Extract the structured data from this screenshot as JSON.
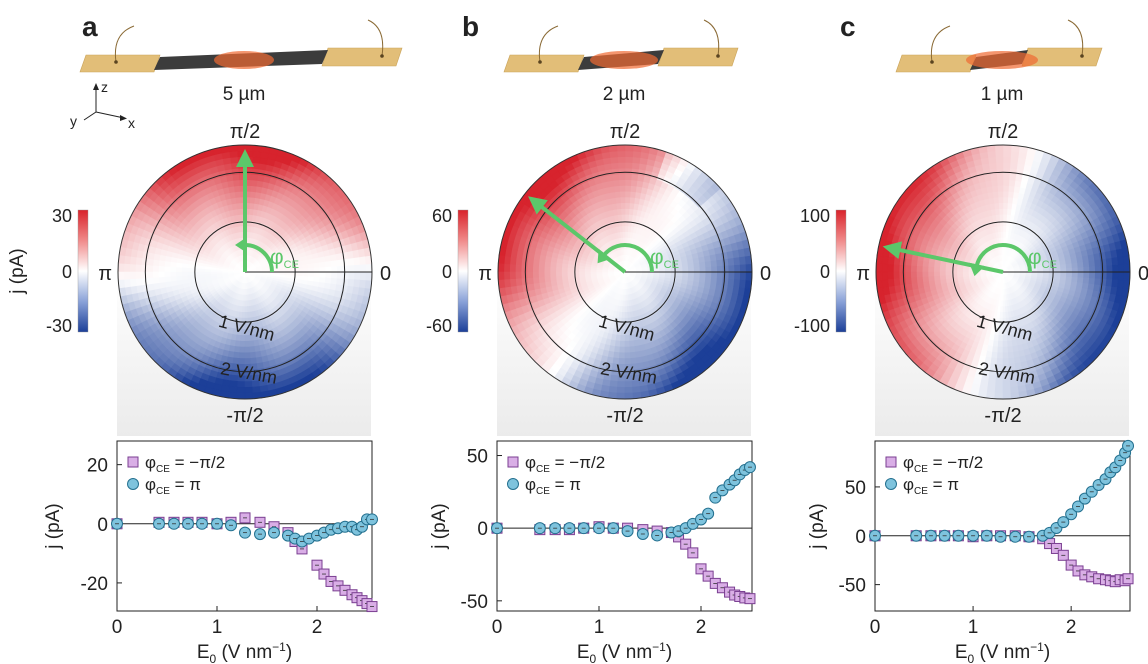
{
  "panels": [
    {
      "letter": "a",
      "device_label": "5 µm",
      "colorbar": {
        "max_label": "30",
        "mid_label": "0",
        "min_label": "-30",
        "ylabel": "j (pA)"
      },
      "polar": {
        "top": "π/2",
        "bottom": "-π/2",
        "left": "π",
        "right": "0",
        "ring1": "1 V/nm",
        "ring2": "2 V/nm",
        "phi_label": "φ",
        "phi_sub": "CE",
        "arrow_angle_deg": 90,
        "pattern": "vertical"
      },
      "axes_labels": {
        "x_axis": "xyz-axes"
      }
    },
    {
      "letter": "b",
      "device_label": "2 µm",
      "colorbar": {
        "max_label": "60",
        "mid_label": "0",
        "min_label": "-60",
        "ylabel": ""
      },
      "polar": {
        "top": "π/2",
        "bottom": "-π/2",
        "left": "π",
        "right": "0",
        "ring1": "1 V/nm",
        "ring2": "2 V/nm",
        "phi_label": "φ",
        "phi_sub": "CE",
        "arrow_angle_deg": 142,
        "pattern": "diagonal"
      },
      "axes_labels": {
        "x_axis": ""
      }
    },
    {
      "letter": "c",
      "device_label": "1 µm",
      "colorbar": {
        "max_label": "100",
        "mid_label": "0",
        "min_label": "-100",
        "ylabel": ""
      },
      "polar": {
        "top": "π/2",
        "bottom": "-π/2",
        "left": "π",
        "right": "0",
        "ring1": "1 V/nm",
        "ring2": "2 V/nm",
        "phi_label": "φ",
        "phi_sub": "CE",
        "arrow_angle_deg": 168,
        "pattern": "horizontal"
      },
      "axes_labels": {
        "x_axis": ""
      }
    }
  ],
  "axis_labels_3d": {
    "z": "z",
    "y": "y",
    "x": "x"
  },
  "colors": {
    "series1_fill": "#d9aee6",
    "series1_edge": "#7a3f91",
    "series2_fill": "#7ec3dd",
    "series2_edge": "#24708f",
    "arrow": "#5cc76a",
    "gold": "#e2be78",
    "laser": "#f06a32"
  },
  "chart_data": [
    {
      "type": "scatter",
      "xlabel_main": "E",
      "xlabel_sub": "0",
      "xlabel_unit": " (V nm",
      "xlabel_exp": "−1",
      "xlabel_close": ")",
      "ylabel": "j (pA)",
      "xlim": [
        0,
        2.55
      ],
      "ylim": [
        -29.5,
        28
      ],
      "xticks": [
        0,
        1,
        2
      ],
      "yticks": [
        20,
        0,
        -20
      ],
      "legend_placement": "top-left",
      "series": [
        {
          "name": "φCE = −π/2",
          "legend_main": "φ",
          "legend_sub": "CE",
          "legend_rest": " = −π/2",
          "marker": "square",
          "x": [
            0.0,
            0.42,
            0.57,
            0.71,
            0.85,
            1.0,
            1.14,
            1.28,
            1.43,
            1.57,
            1.71,
            1.78,
            1.85,
            2.0,
            2.07,
            2.14,
            2.21,
            2.28,
            2.35,
            2.4,
            2.45,
            2.5,
            2.55
          ],
          "y": [
            0.0,
            0.5,
            0.5,
            0.5,
            0.5,
            0.0,
            0.5,
            2.0,
            0.5,
            -1.0,
            -3.0,
            -6.0,
            -8.5,
            -14.0,
            -17.0,
            -19.5,
            -21.0,
            -22.5,
            -24.0,
            -25.0,
            -26.0,
            -27.0,
            -28.0
          ]
        },
        {
          "name": "φCE = π",
          "legend_main": "φ",
          "legend_sub": "CE",
          "legend_rest": " = π",
          "marker": "circle",
          "x": [
            0.0,
            0.42,
            0.57,
            0.71,
            0.85,
            1.0,
            1.14,
            1.28,
            1.43,
            1.57,
            1.71,
            1.78,
            1.85,
            1.92,
            2.0,
            2.07,
            2.14,
            2.21,
            2.28,
            2.35,
            2.4,
            2.45,
            2.5,
            2.55
          ],
          "y": [
            0.0,
            0.0,
            0.0,
            0.0,
            0.0,
            0.0,
            -0.5,
            -3.0,
            -3.5,
            -3.0,
            -4.0,
            -5.0,
            -6.0,
            -5.0,
            -4.0,
            -3.0,
            -2.0,
            -1.5,
            -1.0,
            -1.0,
            -2.0,
            -1.0,
            1.5,
            1.5
          ]
        }
      ]
    },
    {
      "type": "scatter",
      "xlabel_main": "E",
      "xlabel_sub": "0",
      "xlabel_unit": " (V nm",
      "xlabel_exp": "−1",
      "xlabel_close": ")",
      "ylabel": "j (pA)",
      "xlim": [
        0,
        2.5
      ],
      "ylim": [
        -57,
        60
      ],
      "xticks": [
        0,
        1,
        2
      ],
      "yticks": [
        50,
        0,
        -50
      ],
      "legend_placement": "top-left",
      "series": [
        {
          "name": "φCE = −π/2",
          "legend_main": "φ",
          "legend_sub": "CE",
          "legend_rest": " = −π/2",
          "marker": "square",
          "x": [
            0.0,
            0.42,
            0.57,
            0.71,
            0.85,
            1.0,
            1.14,
            1.28,
            1.43,
            1.57,
            1.71,
            1.78,
            1.85,
            1.92,
            2.0,
            2.07,
            2.14,
            2.21,
            2.28,
            2.33,
            2.38,
            2.43,
            2.48
          ],
          "y": [
            0.0,
            -1.0,
            -1.0,
            -1.0,
            0.0,
            1.0,
            0.0,
            0.0,
            -1.0,
            -2.0,
            -3.0,
            -6.0,
            -11.0,
            -17.0,
            -28.0,
            -33.0,
            -38.0,
            -41.0,
            -44.0,
            -46.0,
            -47.0,
            -48.0,
            -48.5
          ]
        },
        {
          "name": "φCE = π",
          "legend_main": "φ",
          "legend_sub": "CE",
          "legend_rest": " = π",
          "marker": "circle",
          "x": [
            0.0,
            0.42,
            0.57,
            0.71,
            0.85,
            1.0,
            1.14,
            1.28,
            1.43,
            1.57,
            1.71,
            1.78,
            1.85,
            1.92,
            2.0,
            2.07,
            2.14,
            2.21,
            2.28,
            2.33,
            2.38,
            2.43,
            2.48
          ],
          "y": [
            0.0,
            0.0,
            0.0,
            0.0,
            0.0,
            0.0,
            0.0,
            -2.0,
            -4.0,
            -5.0,
            -3.0,
            -2.0,
            0.0,
            3.0,
            6.0,
            10.0,
            21.0,
            26.0,
            30.0,
            33.0,
            37.0,
            40.0,
            42.0
          ]
        }
      ]
    },
    {
      "type": "scatter",
      "xlabel_main": "E",
      "xlabel_sub": "0",
      "xlabel_unit": " (V nm",
      "xlabel_exp": "−1",
      "xlabel_close": ")",
      "ylabel": "j (pA)",
      "xlim": [
        0,
        2.6
      ],
      "ylim": [
        -77,
        97
      ],
      "xticks": [
        0,
        1,
        2
      ],
      "yticks": [
        50,
        0,
        -50
      ],
      "legend_placement": "top-left",
      "series": [
        {
          "name": "φCE = −π/2",
          "legend_main": "φ",
          "legend_sub": "CE",
          "legend_rest": " = −π/2",
          "marker": "square",
          "x": [
            0.0,
            0.42,
            0.57,
            0.71,
            0.85,
            1.0,
            1.14,
            1.28,
            1.43,
            1.57,
            1.71,
            1.78,
            1.85,
            1.92,
            2.0,
            2.07,
            2.14,
            2.21,
            2.28,
            2.35,
            2.4,
            2.45,
            2.5,
            2.55,
            2.58
          ],
          "y": [
            0.0,
            0.0,
            0.0,
            0.0,
            0.0,
            -1.0,
            0.0,
            0.0,
            0.0,
            -1.0,
            -3.0,
            -8.0,
            -13.0,
            -20.0,
            -30.0,
            -36.0,
            -40.0,
            -42.0,
            -44.0,
            -45.0,
            -46.0,
            -47.0,
            -45.0,
            -46.0,
            -44.0
          ]
        },
        {
          "name": "φCE = π",
          "legend_main": "φ",
          "legend_sub": "CE",
          "legend_rest": " = π",
          "marker": "circle",
          "x": [
            0.0,
            0.42,
            0.57,
            0.71,
            0.85,
            1.0,
            1.14,
            1.28,
            1.43,
            1.57,
            1.71,
            1.78,
            1.85,
            1.92,
            2.0,
            2.07,
            2.14,
            2.21,
            2.28,
            2.35,
            2.4,
            2.45,
            2.5,
            2.55,
            2.58
          ],
          "y": [
            0.0,
            0.0,
            0.0,
            0.0,
            0.0,
            0.0,
            0.0,
            -1.0,
            -1.0,
            -1.0,
            0.0,
            3.0,
            8.0,
            14.0,
            22.0,
            30.0,
            38.0,
            45.0,
            52.0,
            58.0,
            65.0,
            70.0,
            77.0,
            85.0,
            92.0
          ]
        }
      ]
    }
  ]
}
